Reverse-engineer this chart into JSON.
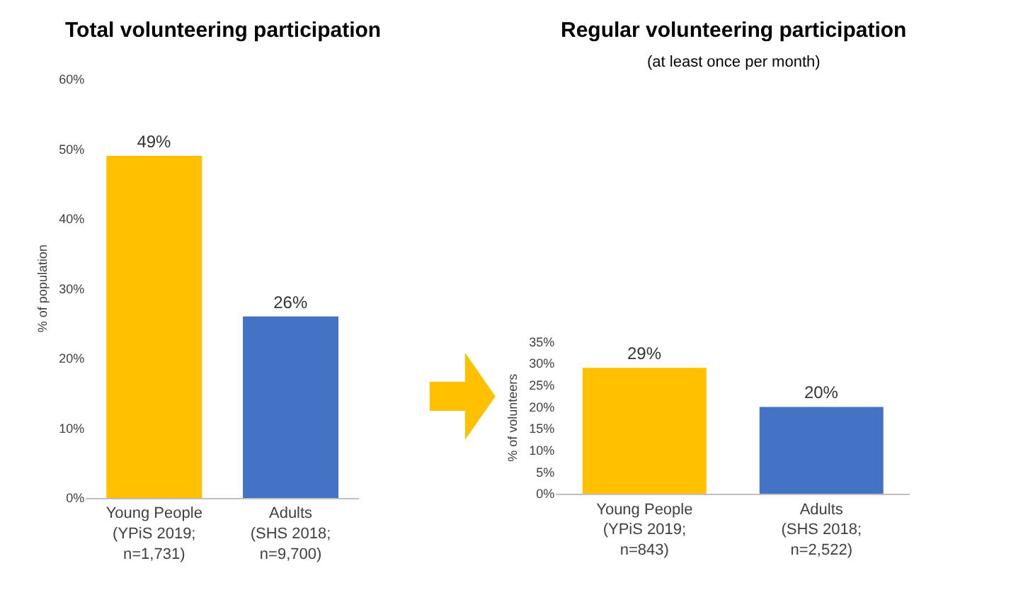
{
  "chart_data": [
    {
      "type": "bar",
      "title": "Total volunteering participation",
      "ylabel": "% of population",
      "categories": [
        "Young People\n(YPiS 2019;\nn=1,731)",
        "Adults\n(SHS 2018;\nn=9,700)"
      ],
      "values": [
        49,
        26
      ],
      "colors": [
        "#ffc000",
        "#4472c4"
      ],
      "value_labels": [
        "49%",
        "26%"
      ],
      "ylim": [
        0,
        60
      ],
      "yticks": [
        {
          "value": 0,
          "label": "0%"
        },
        {
          "value": 10,
          "label": "10%"
        },
        {
          "value": 20,
          "label": "20%"
        },
        {
          "value": 30,
          "label": "30%"
        },
        {
          "value": 40,
          "label": "40%"
        },
        {
          "value": 50,
          "label": "50%"
        },
        {
          "value": 60,
          "label": "60%"
        }
      ]
    },
    {
      "type": "bar",
      "title": "Regular volunteering participation",
      "subtitle": "(at least once per month)",
      "ylabel": "% of volunteers",
      "categories": [
        "Young People\n(YPiS 2019;\nn=843)",
        "Adults\n(SHS 2018;\nn=2,522)"
      ],
      "values": [
        29,
        20
      ],
      "colors": [
        "#ffc000",
        "#4472c4"
      ],
      "value_labels": [
        "29%",
        "20%"
      ],
      "ylim": [
        0,
        35
      ],
      "yticks": [
        {
          "value": 0,
          "label": "0%"
        },
        {
          "value": 5,
          "label": "5%"
        },
        {
          "value": 10,
          "label": "10%"
        },
        {
          "value": 15,
          "label": "15%"
        },
        {
          "value": 20,
          "label": "20%"
        },
        {
          "value": 25,
          "label": "25%"
        },
        {
          "value": 30,
          "label": "30%"
        },
        {
          "value": 35,
          "label": "35%"
        }
      ]
    }
  ]
}
